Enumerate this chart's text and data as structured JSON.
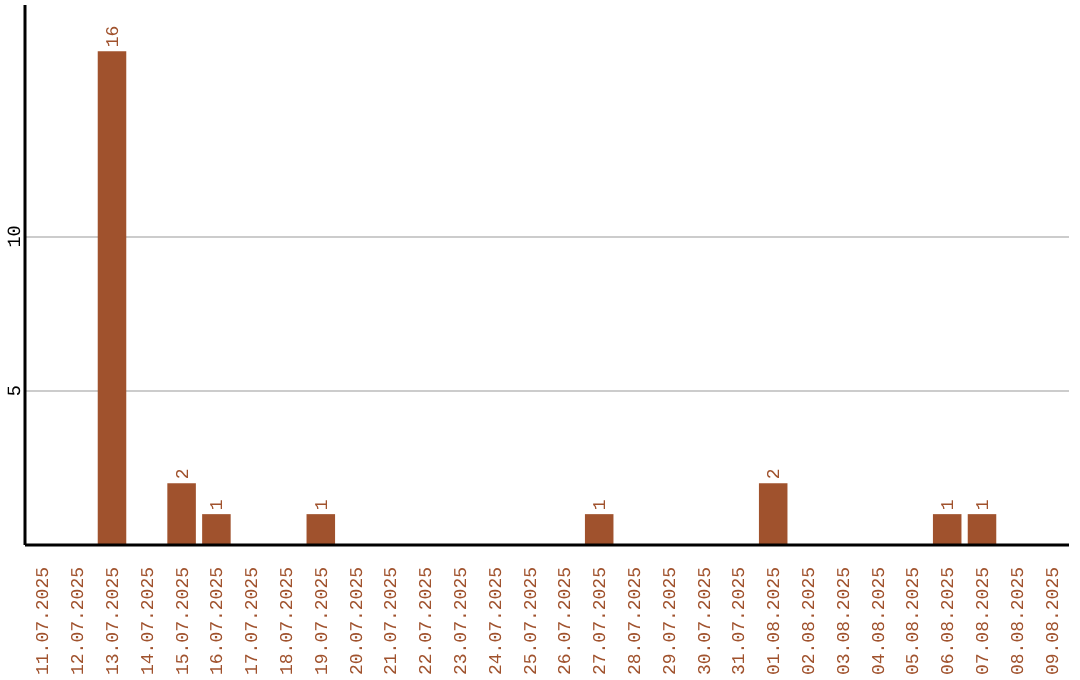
{
  "chart_data": {
    "type": "bar",
    "categories": [
      "11.07.2025",
      "12.07.2025",
      "13.07.2025",
      "14.07.2025",
      "15.07.2025",
      "16.07.2025",
      "17.07.2025",
      "18.07.2025",
      "19.07.2025",
      "20.07.2025",
      "21.07.2025",
      "22.07.2025",
      "23.07.2025",
      "24.07.2025",
      "25.07.2025",
      "26.07.2025",
      "27.07.2025",
      "28.07.2025",
      "29.07.2025",
      "30.07.2025",
      "31.07.2025",
      "01.08.2025",
      "02.08.2025",
      "03.08.2025",
      "04.08.2025",
      "05.08.2025",
      "06.08.2025",
      "07.08.2025",
      "08.08.2025",
      "09.08.2025"
    ],
    "values": [
      null,
      null,
      16,
      null,
      2,
      1,
      null,
      null,
      1,
      null,
      null,
      null,
      null,
      null,
      null,
      null,
      1,
      null,
      null,
      null,
      null,
      2,
      null,
      null,
      null,
      null,
      1,
      1,
      null,
      null
    ],
    "color": "#a0522d",
    "ylim": [
      0,
      17.5
    ],
    "yticks": [
      5,
      10
    ],
    "grid": "y",
    "data_labels": true
  }
}
